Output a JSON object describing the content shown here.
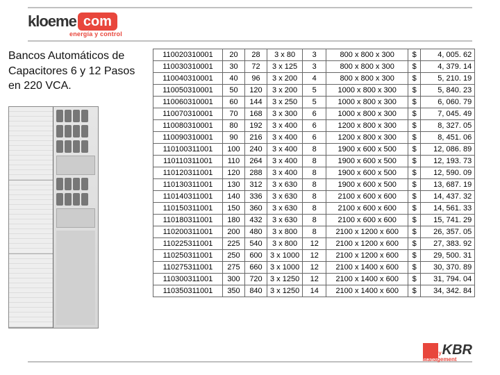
{
  "brand": {
    "name_left": "kloeme",
    "name_right": "com",
    "tagline": "energía y control"
  },
  "title": "Bancos Automáticos de Capacitores 6 y 12 Pasos en 220 VCA.",
  "currency": "$",
  "table": {
    "columns": [
      "code",
      "kvar",
      "amps",
      "fuse",
      "steps",
      "dims",
      "currency",
      "price"
    ],
    "colors": {
      "border": "#666666",
      "text": "#111111"
    },
    "rows": [
      {
        "code": "110020310001",
        "kvar": "20",
        "amps": "28",
        "fuse": "3 x 80",
        "steps": "3",
        "dims": "800 x 800 x 300",
        "price": "4, 005. 62"
      },
      {
        "code": "110030310001",
        "kvar": "30",
        "amps": "72",
        "fuse": "3 x 125",
        "steps": "3",
        "dims": "800 x 800 x 300",
        "price": "4, 379. 14"
      },
      {
        "code": "110040310001",
        "kvar": "40",
        "amps": "96",
        "fuse": "3 x 200",
        "steps": "4",
        "dims": "800 x 800 x 300",
        "price": "5, 210. 19"
      },
      {
        "code": "110050310001",
        "kvar": "50",
        "amps": "120",
        "fuse": "3 x 200",
        "steps": "5",
        "dims": "1000 x 800 x 300",
        "price": "5, 840. 23"
      },
      {
        "code": "110060310001",
        "kvar": "60",
        "amps": "144",
        "fuse": "3 x 250",
        "steps": "5",
        "dims": "1000 x 800 x 300",
        "price": "6, 060. 79"
      },
      {
        "code": "110070310001",
        "kvar": "70",
        "amps": "168",
        "fuse": "3 x 300",
        "steps": "6",
        "dims": "1000 x 800 x 300",
        "price": "7, 045. 49"
      },
      {
        "code": "110080310001",
        "kvar": "80",
        "amps": "192",
        "fuse": "3 x 400",
        "steps": "6",
        "dims": "1200 x 800 x 300",
        "price": "8, 327. 05"
      },
      {
        "code": "110090310001",
        "kvar": "90",
        "amps": "216",
        "fuse": "3 x 400",
        "steps": "6",
        "dims": "1200 x 800 x 300",
        "price": "8, 451. 06"
      },
      {
        "code": "110100311001",
        "kvar": "100",
        "amps": "240",
        "fuse": "3 x 400",
        "steps": "8",
        "dims": "1900 x 600 x 500",
        "price": "12, 086. 89"
      },
      {
        "code": "110110311001",
        "kvar": "110",
        "amps": "264",
        "fuse": "3 x 400",
        "steps": "8",
        "dims": "1900 x 600 x 500",
        "price": "12, 193. 73"
      },
      {
        "code": "110120311001",
        "kvar": "120",
        "amps": "288",
        "fuse": "3 x 400",
        "steps": "8",
        "dims": "1900 x 600 x 500",
        "price": "12, 590. 09"
      },
      {
        "code": "110130311001",
        "kvar": "130",
        "amps": "312",
        "fuse": "3 x 630",
        "steps": "8",
        "dims": "1900 x 600 x 500",
        "price": "13, 687. 19"
      },
      {
        "code": "110140311001",
        "kvar": "140",
        "amps": "336",
        "fuse": "3 x 630",
        "steps": "8",
        "dims": "2100 x 600 x 600",
        "price": "14, 437. 32"
      },
      {
        "code": "110150311001",
        "kvar": "150",
        "amps": "360",
        "fuse": "3 x 630",
        "steps": "8",
        "dims": "2100 x 600 x 600",
        "price": "14, 561. 33"
      },
      {
        "code": "110180311001",
        "kvar": "180",
        "amps": "432",
        "fuse": "3 x 630",
        "steps": "8",
        "dims": "2100 x 600 x 600",
        "price": "15, 741. 29"
      },
      {
        "code": "110200311001",
        "kvar": "200",
        "amps": "480",
        "fuse": "3 x 800",
        "steps": "8",
        "dims": "2100 x 1200 x 600",
        "price": "26, 357. 05"
      },
      {
        "code": "110225311001",
        "kvar": "225",
        "amps": "540",
        "fuse": "3 x 800",
        "steps": "12",
        "dims": "2100 x 1200 x 600",
        "price": "27, 383. 92"
      },
      {
        "code": "110250311001",
        "kvar": "250",
        "amps": "600",
        "fuse": "3 x 1000",
        "steps": "12",
        "dims": "2100 x 1200 x 600",
        "price": "29, 500. 31"
      },
      {
        "code": "110275311001",
        "kvar": "275",
        "amps": "660",
        "fuse": "3 x 1000",
        "steps": "12",
        "dims": "2100 x 1400 x 600",
        "price": "30, 370. 89"
      },
      {
        "code": "110300311001",
        "kvar": "300",
        "amps": "720",
        "fuse": "3 x 1250",
        "steps": "12",
        "dims": "2100 x 1400 x 600",
        "price": "31, 794. 04"
      },
      {
        "code": "110350311001",
        "kvar": "350",
        "amps": "840",
        "fuse": "3 x 1250",
        "steps": "14",
        "dims": "2100 x 1400 x 600",
        "price": "34, 342. 84"
      }
    ]
  },
  "footer_brand": {
    "name": "KBR",
    "tagline": "Energy Management"
  }
}
